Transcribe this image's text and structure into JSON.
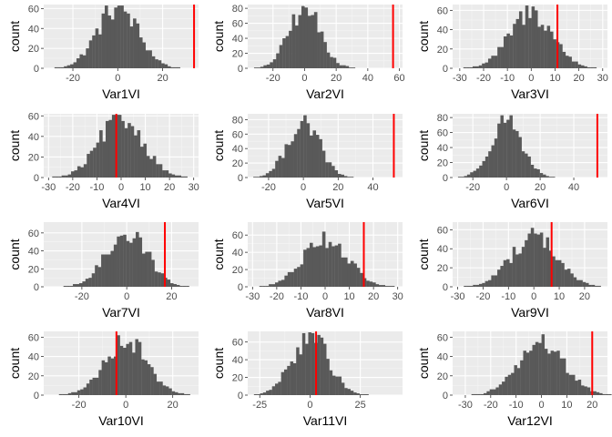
{
  "figure": {
    "y_label": "count"
  },
  "colors": {
    "panel_bg": "#EBEBEB",
    "grid_major": "#FFFFFF",
    "grid_minor": "#F5F5F5",
    "bar": "#595959",
    "ref_line": "#FF0000",
    "tick_text": "#4D4D4D",
    "axis_text": "#000000"
  },
  "chart_data": [
    {
      "type": "bar",
      "title": "",
      "xlabel": "Var1VI",
      "ylabel": "count",
      "xlim": [
        -33,
        36
      ],
      "ylim": [
        0,
        64
      ],
      "xticks": [
        -20,
        0,
        20
      ],
      "yticks": [
        0,
        20,
        40,
        60
      ],
      "center": 0,
      "sd": 9,
      "n": 1000,
      "binwidth": 1.4,
      "ref_x": 34
    },
    {
      "type": "bar",
      "title": "",
      "xlabel": "Var2VI",
      "ylabel": "count",
      "xlim": [
        -36,
        62
      ],
      "ylim": [
        0,
        85
      ],
      "xticks": [
        -20,
        0,
        20,
        40,
        60
      ],
      "yticks": [
        0,
        20,
        40,
        60,
        80
      ],
      "center": 0,
      "sd": 10,
      "n": 1000,
      "binwidth": 2.0,
      "ref_x": 56
    },
    {
      "type": "bar",
      "title": "",
      "xlabel": "Var3VI",
      "ylabel": "count",
      "xlim": [
        -33,
        32
      ],
      "ylim": [
        0,
        66
      ],
      "xticks": [
        -30,
        -20,
        -10,
        0,
        10,
        20,
        30
      ],
      "yticks": [
        0,
        20,
        40,
        60
      ],
      "center": 0,
      "sd": 9,
      "n": 1000,
      "binwidth": 1.3,
      "ref_x": 11
    },
    {
      "type": "bar",
      "title": "",
      "xlabel": "Var4VI",
      "ylabel": "count",
      "xlim": [
        -32,
        32
      ],
      "ylim": [
        0,
        62
      ],
      "xticks": [
        -30,
        -20,
        -10,
        0,
        10,
        20,
        30
      ],
      "yticks": [
        0,
        20,
        40,
        60
      ],
      "center": 0,
      "sd": 9,
      "n": 1000,
      "binwidth": 1.3,
      "ref_x": -2
    },
    {
      "type": "bar",
      "title": "",
      "xlabel": "Var5VI",
      "ylabel": "count",
      "xlim": [
        -32,
        57
      ],
      "ylim": [
        0,
        88
      ],
      "xticks": [
        -20,
        0,
        20,
        40
      ],
      "yticks": [
        0,
        20,
        40,
        60,
        80
      ],
      "center": 0,
      "sd": 9,
      "n": 1000,
      "binwidth": 1.8,
      "ref_x": 52
    },
    {
      "type": "bar",
      "title": "",
      "xlabel": "Var6VI",
      "ylabel": "count",
      "xlim": [
        -32,
        60
      ],
      "ylim": [
        0,
        85
      ],
      "xticks": [
        -20,
        0,
        20,
        40
      ],
      "yticks": [
        0,
        20,
        40,
        60,
        80
      ],
      "center": 0,
      "sd": 9,
      "n": 1000,
      "binwidth": 1.8,
      "ref_x": 54
    },
    {
      "type": "bar",
      "title": "",
      "xlabel": "Var7VI",
      "ylabel": "count",
      "xlim": [
        -37,
        32
      ],
      "ylim": [
        0,
        72
      ],
      "xticks": [
        -20,
        0,
        20
      ],
      "yticks": [
        0,
        20,
        40,
        60
      ],
      "center": 0,
      "sd": 9,
      "n": 1000,
      "binwidth": 1.4,
      "ref_x": 17
    },
    {
      "type": "bar",
      "title": "",
      "xlabel": "Var8VI",
      "ylabel": "count",
      "xlim": [
        -32,
        32
      ],
      "ylim": [
        0,
        75
      ],
      "xticks": [
        -30,
        -20,
        -10,
        0,
        10,
        20,
        30
      ],
      "yticks": [
        0,
        20,
        40,
        60
      ],
      "center": 0,
      "sd": 9,
      "n": 1000,
      "binwidth": 1.3,
      "ref_x": 16
    },
    {
      "type": "bar",
      "title": "",
      "xlabel": "Var9VI",
      "ylabel": "count",
      "xlim": [
        -32,
        29
      ],
      "ylim": [
        0,
        68
      ],
      "xticks": [
        -30,
        -20,
        -10,
        0,
        10,
        20
      ],
      "yticks": [
        0,
        20,
        40,
        60
      ],
      "center": 0,
      "sd": 9,
      "n": 1000,
      "binwidth": 1.2,
      "ref_x": 7
    },
    {
      "type": "bar",
      "title": "",
      "xlabel": "Var10VI",
      "ylabel": "count",
      "xlim": [
        -35,
        31
      ],
      "ylim": [
        0,
        66
      ],
      "xticks": [
        -20,
        0,
        20
      ],
      "yticks": [
        0,
        20,
        40,
        60
      ],
      "center": 0,
      "sd": 9,
      "n": 1000,
      "binwidth": 1.3,
      "ref_x": -4
    },
    {
      "type": "bar",
      "title": "",
      "xlabel": "Var11VI",
      "ylabel": "count",
      "xlim": [
        -31,
        46
      ],
      "ylim": [
        0,
        72
      ],
      "xticks": [
        -25,
        0,
        25
      ],
      "yticks": [
        0,
        20,
        40,
        60
      ],
      "center": 0,
      "sd": 9,
      "n": 1000,
      "binwidth": 1.5,
      "ref_x": 3
    },
    {
      "type": "bar",
      "title": "",
      "xlabel": "Var12VI",
      "ylabel": "count",
      "xlim": [
        -35,
        26
      ],
      "ylim": [
        0,
        66
      ],
      "xticks": [
        -30,
        -20,
        -10,
        0,
        10,
        20
      ],
      "yticks": [
        0,
        20,
        40,
        60
      ],
      "center": 0,
      "sd": 9,
      "n": 1000,
      "binwidth": 1.2,
      "ref_x": 20
    }
  ]
}
